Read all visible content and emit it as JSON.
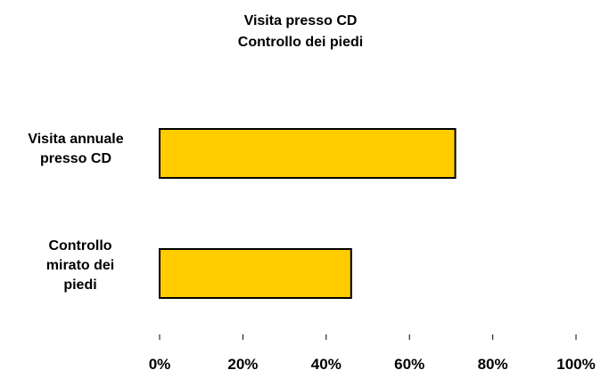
{
  "chart_data": {
    "type": "bar",
    "orientation": "horizontal",
    "title": [
      "Visita presso CD",
      "Controllo dei piedi"
    ],
    "categories": [
      [
        "Visita annuale",
        "presso CD"
      ],
      [
        "Controllo",
        "mirato dei",
        "piedi"
      ]
    ],
    "values": [
      71,
      46
    ],
    "xlim": [
      0,
      100
    ],
    "x_ticks": [
      0,
      20,
      40,
      60,
      80,
      100
    ],
    "x_tick_labels": [
      "0%",
      "20%",
      "40%",
      "60%",
      "80%",
      "100%"
    ],
    "bar_color": "#FFCC00",
    "bar_edge_color": "#000000",
    "grid": false,
    "legend": "none"
  }
}
